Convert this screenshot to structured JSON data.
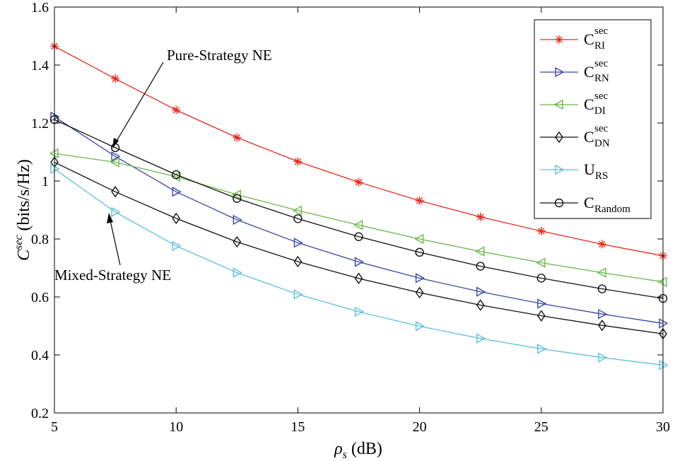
{
  "chart_data": {
    "type": "line",
    "x": [
      5,
      7.5,
      10,
      12.5,
      15,
      17.5,
      20,
      22.5,
      25,
      27.5,
      30
    ],
    "xlim": [
      5,
      30
    ],
    "ylim": [
      0.2,
      1.6
    ],
    "xticks": [
      5,
      10,
      15,
      20,
      25,
      30
    ],
    "yticks": [
      0.2,
      0.4,
      0.6,
      0.8,
      1,
      1.2,
      1.4,
      1.6
    ],
    "xticklabels": [
      "5",
      "10",
      "15",
      "20",
      "25",
      "30"
    ],
    "yticklabels": [
      "0.2",
      "0.4",
      "0.6",
      "0.8",
      "1",
      "1.2",
      "1.4",
      "1.6"
    ],
    "xlabel": {
      "var": "ρ",
      "sub": "s",
      "unit": "(dB)"
    },
    "ylabel": {
      "var": "C",
      "sup": "sec",
      "unit": "(bits/s/Hz)"
    },
    "grid": false,
    "legend_position": "top-right",
    "series": [
      {
        "name": "C_RI^sec",
        "base": "C",
        "sub": "RI",
        "sup": "sec",
        "color": "#e8291c",
        "marker": "star",
        "values": [
          1.465,
          1.353,
          1.245,
          1.15,
          1.067,
          0.996,
          0.932,
          0.876,
          0.827,
          0.782,
          0.742
        ]
      },
      {
        "name": "C_RN^sec",
        "base": "C",
        "sub": "RN",
        "sup": "sec",
        "color": "#3b47a3",
        "marker": "triangle-right",
        "values": [
          1.222,
          1.085,
          0.963,
          0.866,
          0.787,
          0.721,
          0.665,
          0.618,
          0.577,
          0.541,
          0.509
        ]
      },
      {
        "name": "C_DI^sec",
        "base": "C",
        "sub": "DI",
        "sup": "sec",
        "color": "#6ab646",
        "marker": "triangle-left",
        "values": [
          1.095,
          1.065,
          1.015,
          0.953,
          0.898,
          0.848,
          0.8,
          0.757,
          0.718,
          0.684,
          0.652
        ]
      },
      {
        "name": "C_DN^sec",
        "base": "C",
        "sub": "DN",
        "sup": "sec",
        "color": "#111111",
        "marker": "diamond",
        "values": [
          1.065,
          0.963,
          0.871,
          0.79,
          0.722,
          0.664,
          0.615,
          0.572,
          0.535,
          0.502,
          0.473
        ]
      },
      {
        "name": "U_RS",
        "base": "U",
        "sub": "RS",
        "sup": "",
        "color": "#5bc0d8",
        "marker": "triangle-right",
        "values": [
          1.042,
          0.893,
          0.776,
          0.684,
          0.609,
          0.549,
          0.499,
          0.457,
          0.421,
          0.391,
          0.365
        ]
      },
      {
        "name": "C_Random",
        "base": "C",
        "sub": "Random",
        "sup": "",
        "color": "#111111",
        "marker": "circle",
        "values": [
          1.212,
          1.115,
          1.022,
          0.94,
          0.87,
          0.808,
          0.754,
          0.706,
          0.665,
          0.628,
          0.595
        ]
      }
    ],
    "annotations": [
      {
        "text": "Pure-Strategy NE",
        "points_to": [
          7.6,
          1.112
        ]
      },
      {
        "text": "Mixed-Strategy NE",
        "points_to": [
          7.3,
          0.9
        ]
      }
    ]
  }
}
